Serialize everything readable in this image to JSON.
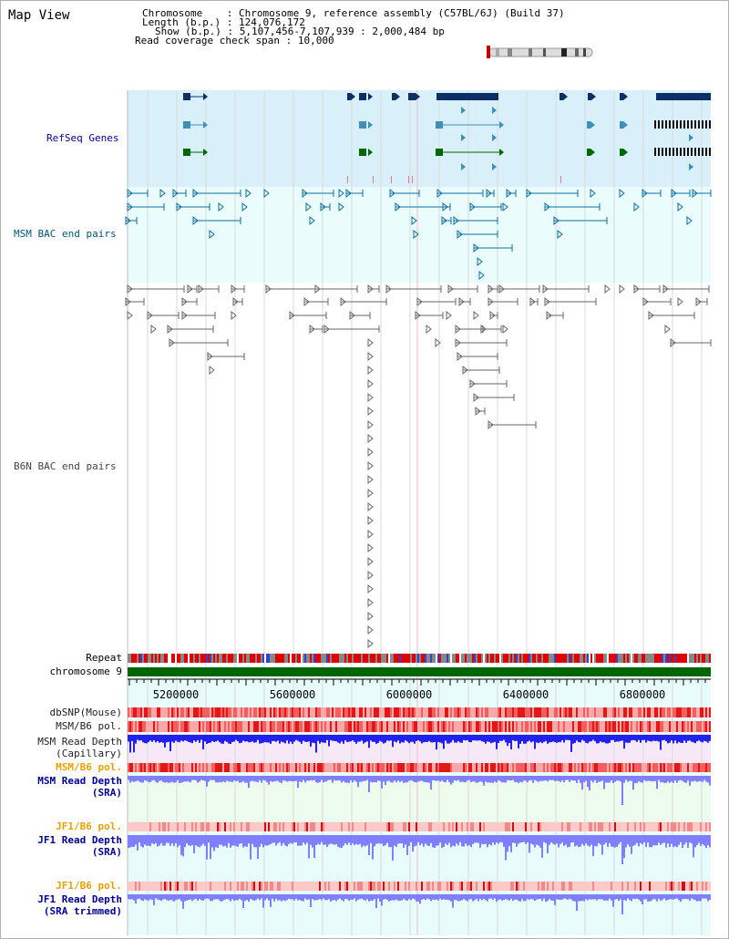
{
  "page": {
    "title": "Map View"
  },
  "info": {
    "chromosome_label": "Chromosome",
    "chromosome_value": "Chromosome 9, reference assembly (C57BL/6J) (Build 37)",
    "length_label": "Length (b.p.)",
    "length_value": "124,076,172",
    "show_label": "Show (b.p.)",
    "show_value": "5,107,456-7,107,939 : 2,000,484 bp",
    "coverage_label": "Read coverage check span",
    "coverage_value": "10,000"
  },
  "tracks": {
    "refseq": "RefSeq Genes",
    "msm_bac": "MSM BAC end pairs",
    "b6n_bac": "B6N BAC end pairs",
    "repeat": "Repeat",
    "chromosome": "chromosome 9",
    "dbsnp": "dbSNP(Mouse)",
    "msm_b6_pol": "MSM/B6 pol.",
    "msm_depth_cap": "MSM Read Depth",
    "msm_depth_cap_sub": "(Capillary)",
    "msm_b6_pol2": "MSM/B6 pol.",
    "msm_depth_sra": "MSM Read Depth",
    "msm_depth_sra_sub": "(SRA)",
    "jf1_b6_pol": "JF1/B6 pol.",
    "jf1_depth_sra": "JF1 Read Depth",
    "jf1_depth_sra_sub": "(SRA)",
    "jf1_b6_pol2": "JF1/B6 pol.",
    "jf1_depth_trim": "JF1 Read Depth",
    "jf1_depth_trim_sub": "(SRA trimmed)"
  },
  "axis": {
    "ticks": [
      "5200000",
      "5600000",
      "6000000",
      "6400000",
      "6800000"
    ]
  },
  "colors": {
    "refseq_bg": "#d9f0fa",
    "bac_bg": "#eafcfc",
    "gene_dark": "#0c2f66",
    "gene_mid": "#3f8fb8",
    "gene_green": "#006600",
    "msm_feature": "#0d6fa0",
    "b6n_feature": "#666666",
    "chromosome_bar": "#006600",
    "label_blue": "#000099",
    "label_teal": "#00557a",
    "label_orange": "#e8a000",
    "depth_blue": "#2222ee",
    "depth_lightblue": "#7f7fff"
  }
}
